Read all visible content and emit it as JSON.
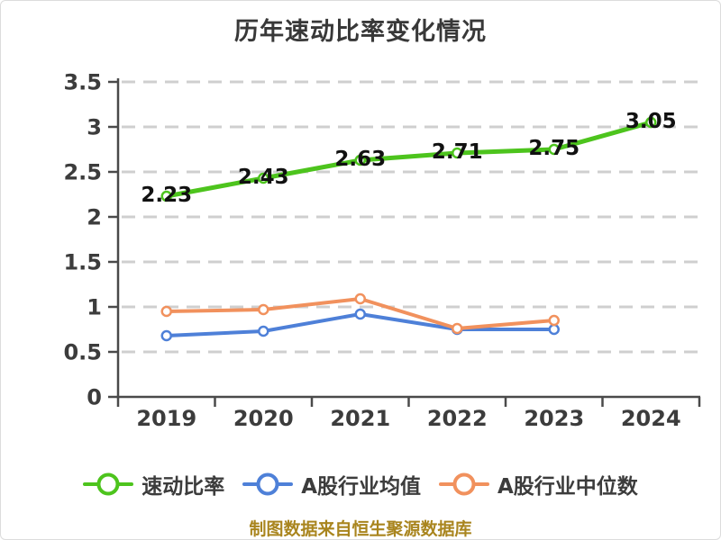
{
  "chart_data": {
    "type": "line",
    "title": "历年速动比率变化情况",
    "categories": [
      "2019",
      "2020",
      "2021",
      "2022",
      "2023",
      "2024"
    ],
    "series": [
      {
        "key": "quick-ratio",
        "name": "速动比率",
        "color": "#4dc41d",
        "line_width": 5,
        "values": [
          2.23,
          2.43,
          2.63,
          2.71,
          2.75,
          3.05
        ],
        "show_labels": true
      },
      {
        "key": "industry-mean",
        "name": "A股行业均值",
        "color": "#4e80d8",
        "line_width": 4,
        "values": [
          0.68,
          0.73,
          0.92,
          0.75,
          0.75
        ],
        "show_labels": false
      },
      {
        "key": "industry-median",
        "name": "A股行业中位数",
        "color": "#f1915d",
        "line_width": 4,
        "values": [
          0.95,
          0.97,
          1.09,
          0.76,
          0.85
        ],
        "show_labels": false
      }
    ],
    "ylim": [
      0,
      3.5
    ],
    "ytick_step": 0.5,
    "ytick_labels": [
      "0",
      "0.5",
      "1",
      "1.5",
      "2",
      "2.5",
      "3",
      "3.5"
    ],
    "grid": "horizontal-dashed",
    "legend_position": "bottom",
    "marker": "circle-white-fill",
    "footer": "制图数据来自恒生聚源数据库",
    "colors": {
      "grid": "#cfcfcf",
      "axis": "#4a4a4a",
      "tick_label": "#3c3c3c",
      "data_label": "#111111",
      "title": "#383838",
      "footer": "#a9851e",
      "background": "#ffffff"
    }
  }
}
